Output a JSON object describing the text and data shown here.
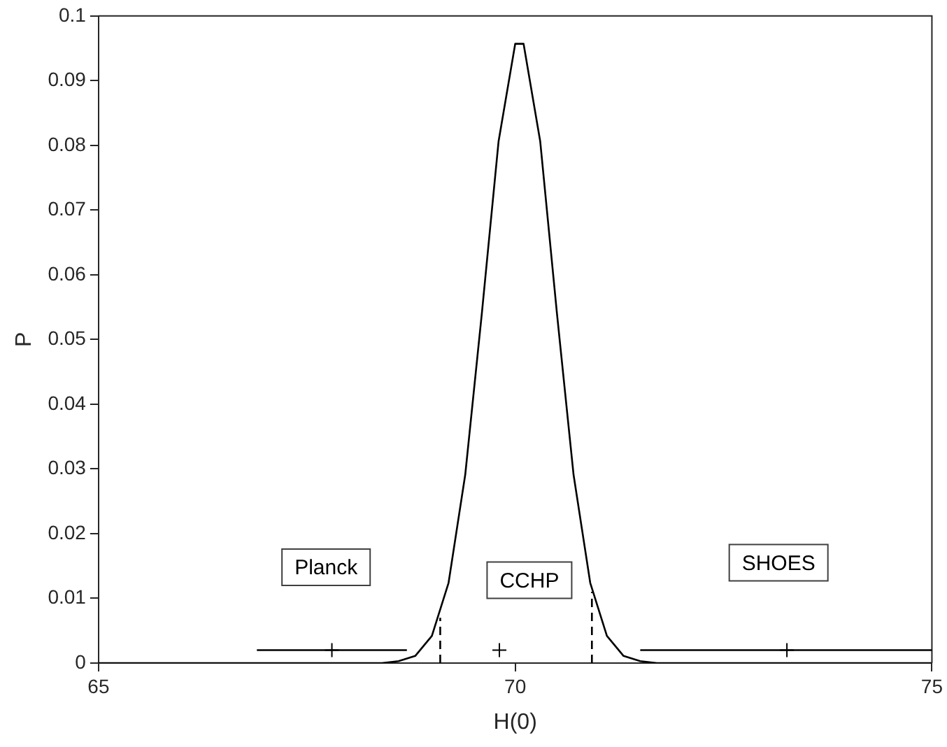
{
  "chart_data": {
    "type": "line",
    "xlabel": "H(0)",
    "ylabel": "P",
    "xlim": [
      65,
      75
    ],
    "xticks": [
      65,
      70,
      75
    ],
    "ylim": [
      0,
      0.1
    ],
    "yticks": [
      0,
      0.01,
      0.02,
      0.03,
      0.04,
      0.05,
      0.06,
      0.07,
      0.08,
      0.09,
      0.1
    ],
    "grid": false,
    "legend": false,
    "line_style": "solid",
    "series": [
      {
        "type": "line",
        "color": "#000000",
        "x": [
          65,
          68,
          68.4,
          68.6,
          68.8,
          69.0,
          69.2,
          69.4,
          69.6,
          69.8,
          70.0,
          70.1,
          70.3,
          70.5,
          70.7,
          70.9,
          71.1,
          71.3,
          71.5,
          71.7,
          72,
          75
        ],
        "values": [
          0,
          0,
          0,
          0.0003,
          0.0011,
          0.0042,
          0.0124,
          0.0291,
          0.0541,
          0.0806,
          0.0957,
          0.0957,
          0.0806,
          0.0541,
          0.0291,
          0.0124,
          0.0042,
          0.0011,
          0.0003,
          0,
          0,
          0
        ]
      },
      {
        "type": "line",
        "color": "#000000",
        "line_style": "dashed",
        "x": [
          69.1,
          69.1
        ],
        "values": [
          0,
          0.007
        ]
      },
      {
        "type": "line",
        "color": "#000000",
        "line_style": "dashed",
        "x": [
          70.92,
          70.92
        ],
        "values": [
          0,
          0.011
        ]
      },
      {
        "type": "scatter",
        "color": "#000000",
        "marker": "cross",
        "x": [
          67.8,
          69.81,
          73.26
        ],
        "values": [
          0.002,
          0.002,
          0.002
        ],
        "xerrors": [
          0.9,
          null,
          [
            71.5,
            75
          ]
        ]
      }
    ],
    "annotations": [
      "Planck",
      "CCHP",
      "SHOES"
    ]
  }
}
